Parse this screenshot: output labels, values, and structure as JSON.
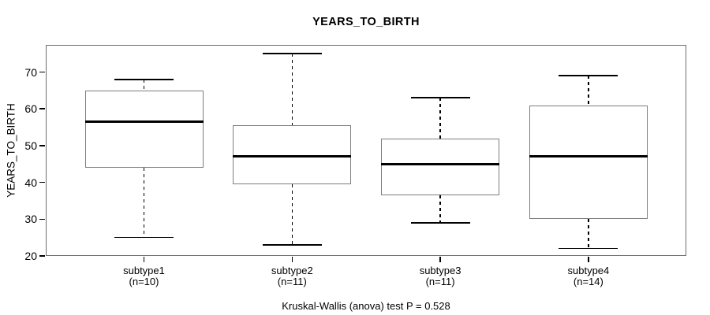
{
  "chart_data": {
    "type": "boxplot",
    "title": "YEARS_TO_BIRTH",
    "xlabel": "",
    "ylabel": "YEARS_TO_BIRTH",
    "caption": "Kruskal-Wallis (anova) test P = 0.528",
    "ylim": [
      20,
      77.4
    ],
    "yticks": [
      20,
      30,
      40,
      50,
      60,
      70
    ],
    "grid": false,
    "legend": false,
    "groups": [
      {
        "label": "subtype1",
        "count_label": "(n=10)",
        "n": 10,
        "whisker_low": 25,
        "q1": 44,
        "median": 56.5,
        "q3": 65,
        "whisker_high": 68
      },
      {
        "label": "subtype2",
        "count_label": "(n=11)",
        "n": 11,
        "whisker_low": 23,
        "q1": 39.5,
        "median": 47,
        "q3": 55.5,
        "whisker_high": 75
      },
      {
        "label": "subtype3",
        "count_label": "(n=11)",
        "n": 11,
        "whisker_low": 29,
        "q1": 36.5,
        "median": 45,
        "q3": 52,
        "whisker_high": 63
      },
      {
        "label": "subtype4",
        "count_label": "(n=14)",
        "n": 14,
        "whisker_low": 22,
        "q1": 30,
        "median": 47,
        "q3": 61,
        "whisker_high": 69
      }
    ],
    "colors": {
      "background": "#ffffff",
      "text": "#000000",
      "frame": "#6e6e6e",
      "box_border": "#7d7d7d",
      "median": "#000000",
      "whisker": "#000000"
    }
  }
}
